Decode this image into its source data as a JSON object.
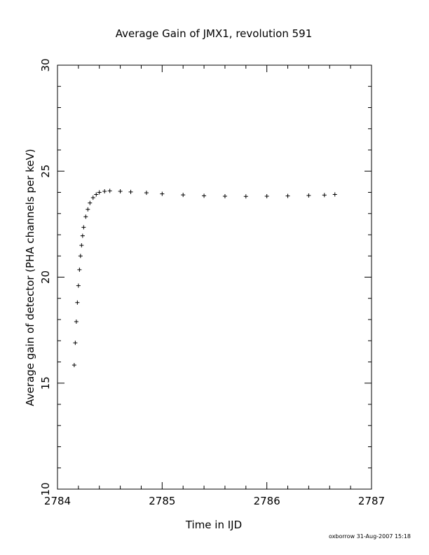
{
  "chart_data": {
    "type": "scatter",
    "title": "Average Gain of JMX1, revolution 591",
    "xlabel": "Time in IJD",
    "ylabel": "Average gain of detector (PHA channels per keV)",
    "xlim": [
      2784,
      2787
    ],
    "ylim": [
      10,
      30
    ],
    "x_ticks": [
      "2784",
      "2785",
      "2786",
      "2787"
    ],
    "y_ticks": [
      "10",
      "15",
      "20",
      "25",
      "30"
    ],
    "marker": "plus",
    "grid": false,
    "series": [
      {
        "x": [
          2784.16,
          2784.17,
          2784.18,
          2784.19,
          2784.2,
          2784.21,
          2784.22,
          2784.23,
          2784.24,
          2784.25,
          2784.27,
          2784.29,
          2784.31,
          2784.34,
          2784.37,
          2784.4,
          2784.45,
          2784.5,
          2784.6,
          2784.7,
          2784.85,
          2785.0,
          2785.2,
          2785.4,
          2785.6,
          2785.8,
          2786.0,
          2786.2,
          2786.4,
          2786.55,
          2786.65
        ],
        "y": [
          15.85,
          16.9,
          17.9,
          18.8,
          19.6,
          20.35,
          21.0,
          21.5,
          21.95,
          22.35,
          22.85,
          23.2,
          23.5,
          23.75,
          23.9,
          24.0,
          24.05,
          24.07,
          24.05,
          24.02,
          23.98,
          23.93,
          23.88,
          23.84,
          23.82,
          23.81,
          23.82,
          23.83,
          23.85,
          23.87,
          23.9
        ]
      }
    ]
  },
  "footer": "oxborrow 31-Aug-2007 15:18"
}
